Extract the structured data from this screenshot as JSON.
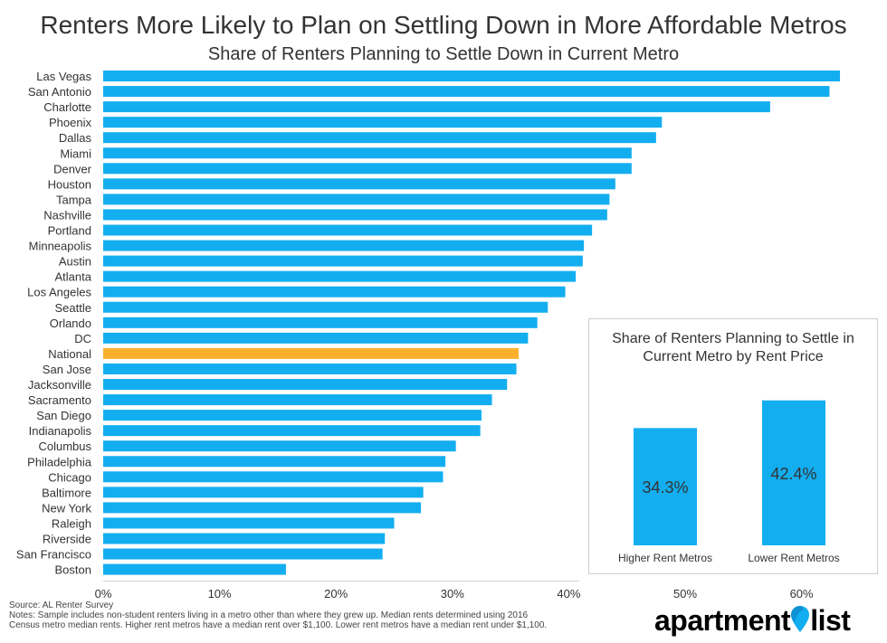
{
  "title": "Renters More Likely to Plan on Settling Down in More Affordable Metros",
  "subtitle": "Share of Renters Planning to Settle Down in Current Metro",
  "colors": {
    "bar": "#13aef0",
    "highlight": "#fbb02d",
    "text": "#333333"
  },
  "chart_data": [
    {
      "type": "bar",
      "orientation": "horizontal",
      "title": "Share of Renters Planning to Settle Down in Current Metro",
      "categories": [
        "Las Vegas",
        "San Antonio",
        "Charlotte",
        "Phoenix",
        "Dallas",
        "Miami",
        "Denver",
        "Houston",
        "Tampa",
        "Nashville",
        "Portland",
        "Minneapolis",
        "Austin",
        "Atlanta",
        "Los Angeles",
        "Seattle",
        "Orlando",
        "DC",
        "National",
        "San Jose",
        "Jacksonville",
        "Sacramento",
        "San Diego",
        "Indianapolis",
        "Columbus",
        "Philadelphia",
        "Chicago",
        "Baltimore",
        "New York",
        "Raleigh",
        "Riverside",
        "San Francisco",
        "Boston"
      ],
      "values": [
        63.3,
        62.4,
        57.3,
        48.0,
        47.5,
        45.4,
        45.4,
        44.0,
        43.5,
        43.3,
        42.0,
        41.3,
        41.2,
        40.6,
        39.7,
        38.2,
        37.3,
        36.5,
        35.7,
        35.5,
        34.7,
        33.4,
        32.5,
        32.4,
        30.3,
        29.4,
        29.2,
        27.5,
        27.3,
        25.0,
        24.2,
        24.0,
        15.7
      ],
      "highlight": "National",
      "xlim": [
        0,
        64
      ],
      "xticks": [
        "0%",
        "10%",
        "20%",
        "30%",
        "40%",
        "50%",
        "60%"
      ],
      "xtick_values": [
        0,
        10,
        20,
        30,
        40,
        50,
        60
      ],
      "grid": false
    },
    {
      "type": "bar",
      "title": "Share of Renters Planning to Settle in Current Metro by Rent Price",
      "categories": [
        "Higher Rent Metros",
        "Lower Rent Metros"
      ],
      "values": [
        34.3,
        42.4
      ],
      "data_labels": [
        "34.3%",
        "42.4%"
      ]
    }
  ],
  "inset": {
    "title_bold": "Share",
    "title_rest": " of Renters Planning to Settle in",
    "title_line2": "Current Metro by Rent Price"
  },
  "footer": {
    "source": "Source: AL Renter Survey",
    "note1": "Notes: Sample includes non-student renters living in a metro other than where they grew up. Median rents determined using 2016",
    "note2": "Census metro median rents. Higher rent metros have a median rent over $1,100. Lower rent metros have a median rent under $1,100."
  },
  "logo": {
    "part1": "apartment",
    "part2": "list"
  }
}
